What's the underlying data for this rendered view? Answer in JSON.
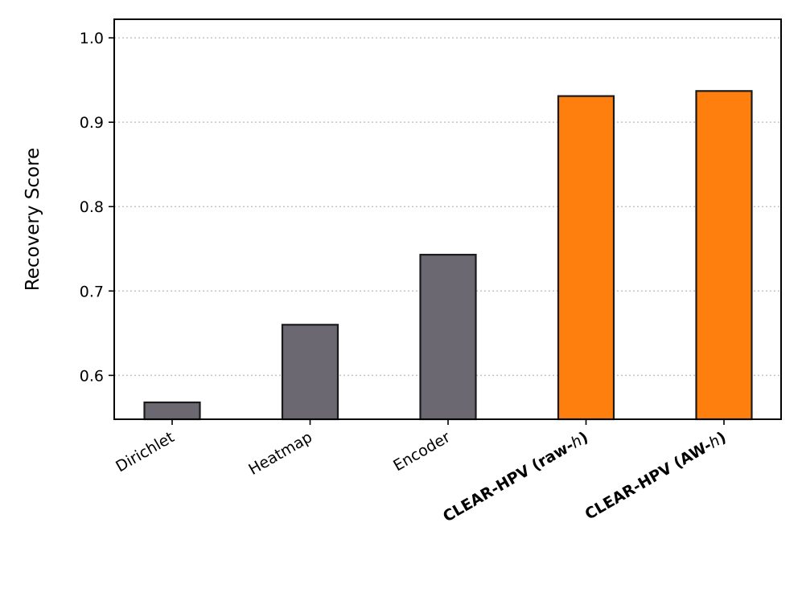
{
  "chart_data": {
    "type": "bar",
    "categories": [
      "Dirichlet",
      "Heatmap",
      "Encoder",
      "CLEAR-HPV (raw-h)",
      "CLEAR-HPV (AW-h)"
    ],
    "category_labels": [
      {
        "text": "Dirichlet",
        "bold": false,
        "italic_suffix": ""
      },
      {
        "text": "Heatmap",
        "bold": false,
        "italic_suffix": ""
      },
      {
        "text": "Encoder",
        "bold": false,
        "italic_suffix": ""
      },
      {
        "text": "CLEAR-HPV (raw-",
        "bold": true,
        "italic_suffix": "h",
        "close": ")"
      },
      {
        "text": "CLEAR-HPV (AW-",
        "bold": true,
        "italic_suffix": "h",
        "close": ")"
      }
    ],
    "values": [
      0.568,
      0.66,
      0.743,
      0.931,
      0.937
    ],
    "bar_colors": [
      "#6b6871",
      "#6b6871",
      "#6b6871",
      "#ff7f0e",
      "#ff7f0e"
    ],
    "title": "",
    "xlabel": "",
    "ylabel": "Recovery Score",
    "ylim": [
      0.548,
      1.022
    ],
    "yticks": [
      0.6,
      0.7,
      0.8,
      0.9,
      1.0
    ],
    "ytick_labels": [
      "0.6",
      "0.7",
      "0.8",
      "0.9",
      "1.0"
    ],
    "grid": "y-dotted",
    "legend": "none"
  }
}
